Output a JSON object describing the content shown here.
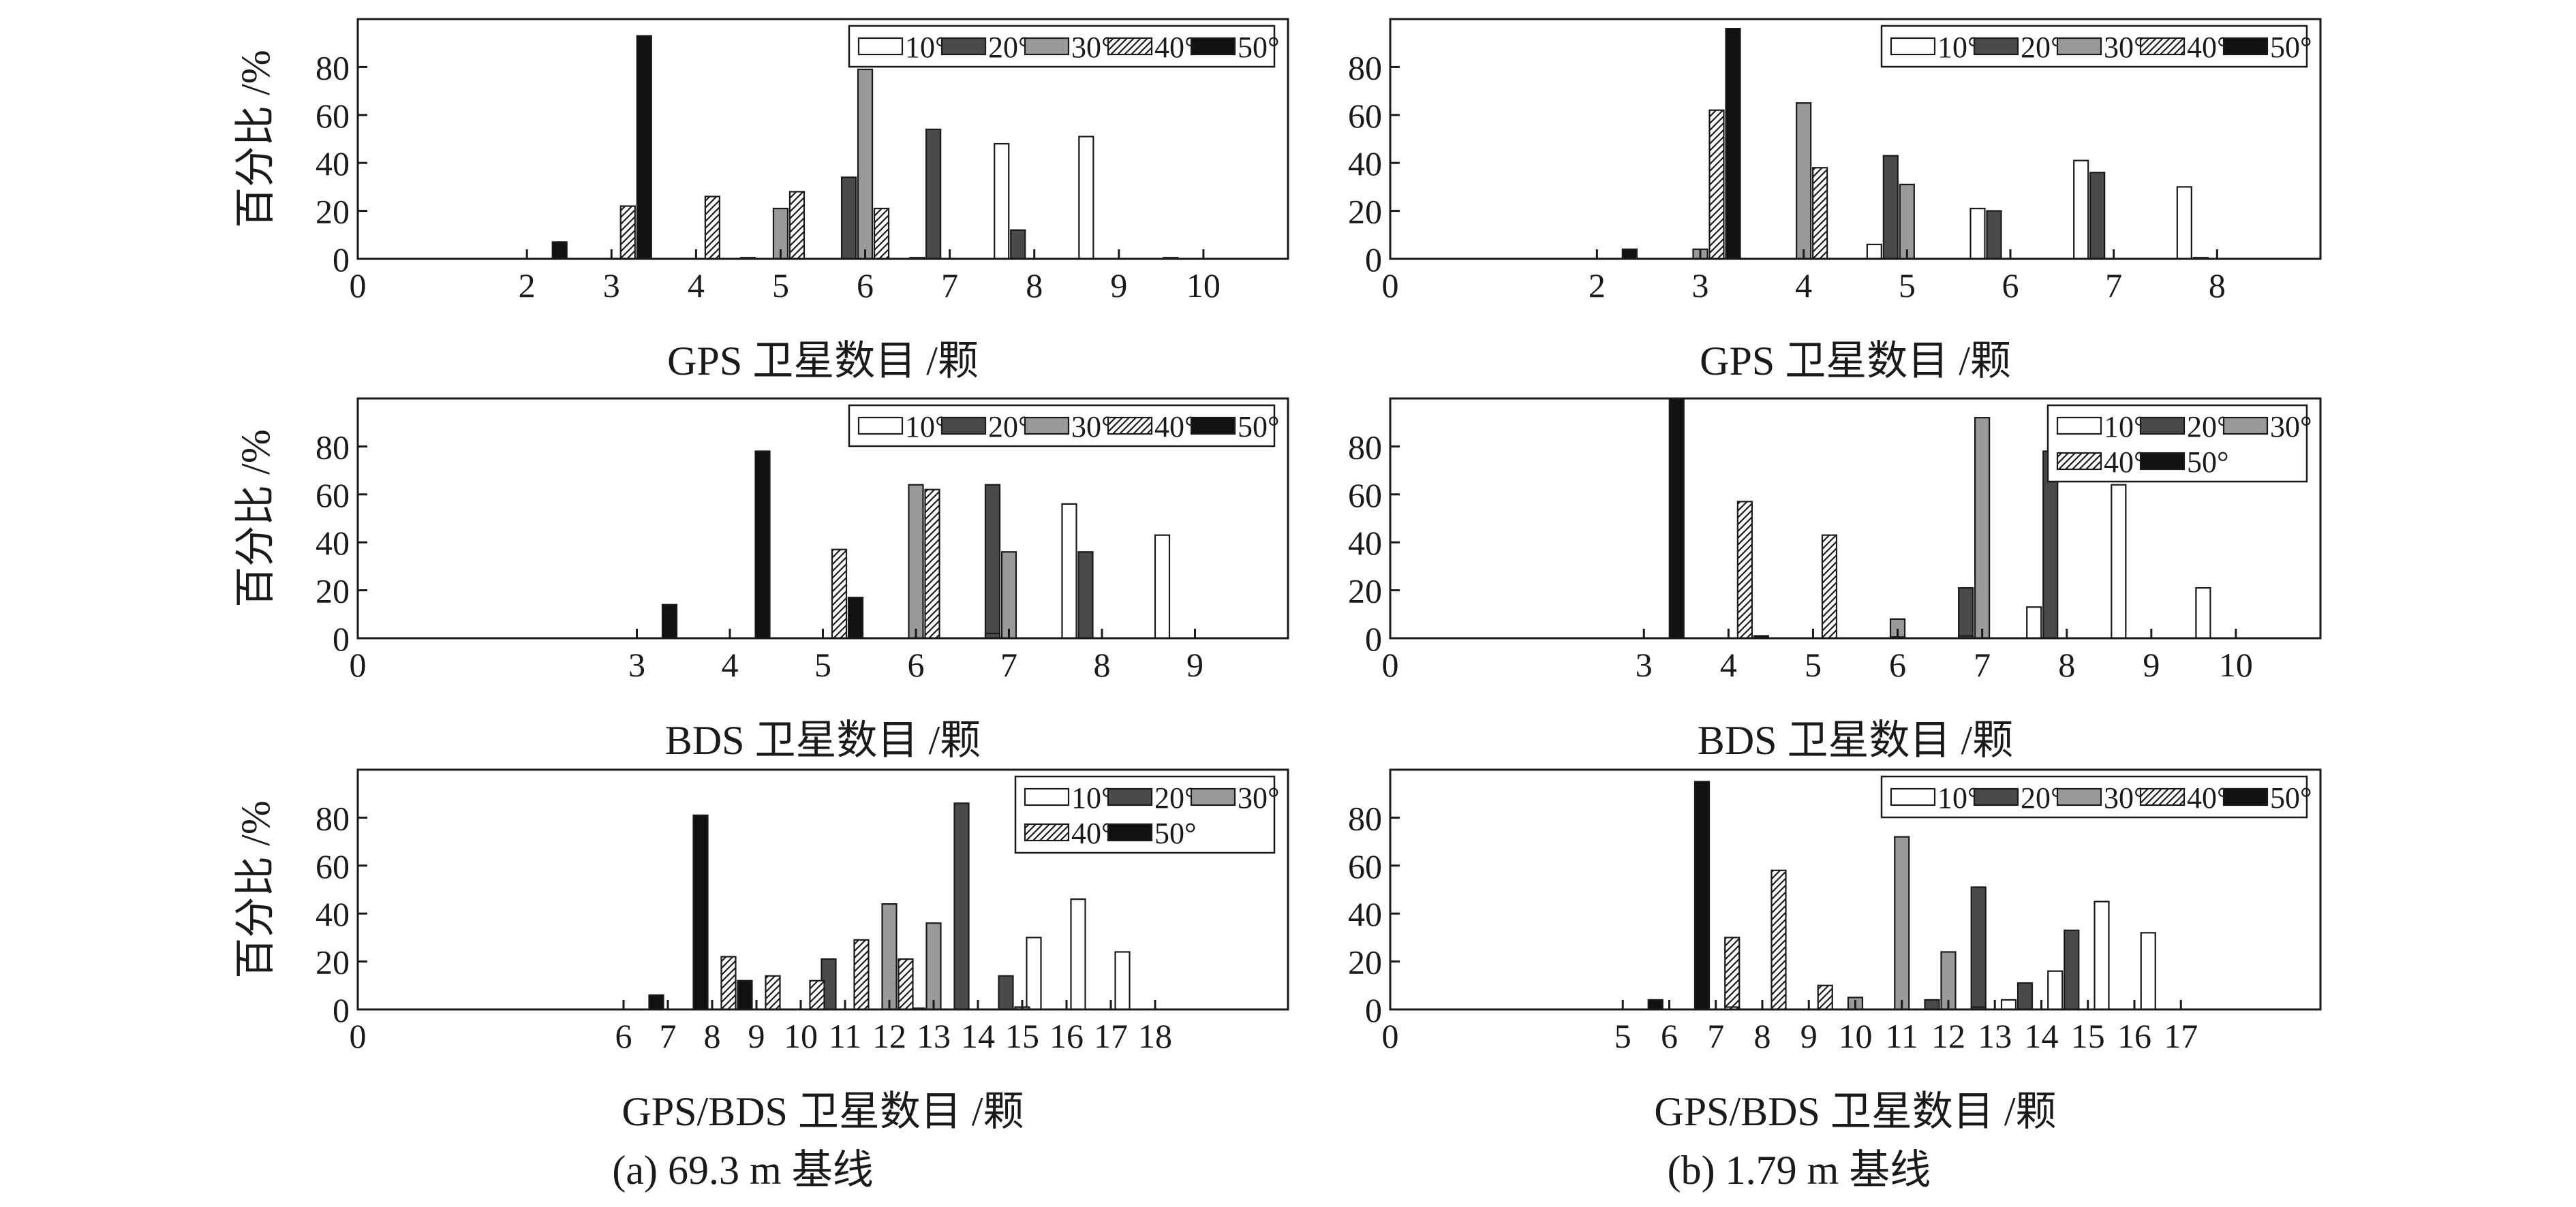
{
  "figure": {
    "legend_series": [
      "10°",
      "20°",
      "30°",
      "40°",
      "50°"
    ],
    "series_styles": [
      {
        "name": "10°",
        "fill": "#ffffff",
        "pattern": "none"
      },
      {
        "name": "20°",
        "fill": "#4a4a4a",
        "pattern": "none"
      },
      {
        "name": "30°",
        "fill": "#9a9a9a",
        "pattern": "none"
      },
      {
        "name": "40°",
        "fill": "#ffffff",
        "pattern": "hatch"
      },
      {
        "name": "50°",
        "fill": "#111111",
        "pattern": "none"
      }
    ],
    "colors": {
      "axis": "#1a1a1a",
      "outline": "#1a1a1a"
    }
  },
  "chart_data": [
    {
      "id": "a-gps",
      "type": "bar",
      "ylabel": "百分比 /%",
      "xlabel": "GPS 卫星数目 /颗",
      "ylim": [
        0,
        100
      ],
      "yticks": [
        0,
        20,
        40,
        60,
        80
      ],
      "xlim": [
        0,
        11
      ],
      "xticks": [
        0,
        2,
        3,
        4,
        5,
        6,
        7,
        8,
        9,
        10
      ],
      "legend_position": "top-right",
      "legend_layout": "one-row",
      "series": [
        {
          "name": "10°",
          "points": [
            [
              5,
              0.5
            ],
            [
              7,
              0.5
            ],
            [
              8,
              48
            ],
            [
              9,
              51
            ],
            [
              10,
              0.5
            ]
          ]
        },
        {
          "name": "20°",
          "points": [
            [
              6,
              34
            ],
            [
              7,
              54
            ],
            [
              8,
              12
            ]
          ]
        },
        {
          "name": "30°",
          "points": [
            [
              5,
              21
            ],
            [
              6,
              79
            ]
          ]
        },
        {
          "name": "40°",
          "points": [
            [
              3,
              22
            ],
            [
              4,
              26
            ],
            [
              5,
              28
            ],
            [
              6,
              21
            ]
          ]
        },
        {
          "name": "50°",
          "points": [
            [
              2,
              7
            ],
            [
              3,
              93
            ]
          ]
        }
      ]
    },
    {
      "id": "b-gps",
      "type": "bar",
      "ylabel": "",
      "xlabel": "GPS 卫星数目 /颗",
      "ylim": [
        0,
        100
      ],
      "yticks": [
        0,
        20,
        40,
        60,
        80
      ],
      "xlim": [
        0,
        9
      ],
      "xticks": [
        0,
        2,
        3,
        4,
        5,
        6,
        7,
        8
      ],
      "legend_position": "top-right",
      "legend_layout": "one-row",
      "series": [
        {
          "name": "10°",
          "points": [
            [
              5,
              6
            ],
            [
              6,
              21
            ],
            [
              7,
              41
            ],
            [
              8,
              30
            ]
          ]
        },
        {
          "name": "20°",
          "points": [
            [
              5,
              43
            ],
            [
              6,
              20
            ],
            [
              7,
              36
            ],
            [
              8,
              0.5
            ]
          ]
        },
        {
          "name": "30°",
          "points": [
            [
              3,
              4
            ],
            [
              4,
              65
            ],
            [
              5,
              31
            ]
          ]
        },
        {
          "name": "40°",
          "points": [
            [
              3,
              62
            ],
            [
              4,
              38
            ]
          ]
        },
        {
          "name": "50°",
          "points": [
            [
              2,
              4
            ],
            [
              3,
              96
            ]
          ]
        }
      ]
    },
    {
      "id": "a-bds",
      "type": "bar",
      "ylabel": "百分比 /%",
      "xlabel": "BDS 卫星数目 /颗",
      "ylim": [
        0,
        100
      ],
      "yticks": [
        0,
        20,
        40,
        60,
        80
      ],
      "xlim": [
        0,
        10
      ],
      "xticks": [
        0,
        3,
        4,
        5,
        6,
        7,
        8,
        9
      ],
      "legend_position": "top-right",
      "legend_layout": "one-row",
      "series": [
        {
          "name": "10°",
          "points": [
            [
              8,
              56
            ],
            [
              9,
              43
            ]
          ]
        },
        {
          "name": "20°",
          "points": [
            [
              7,
              64
            ],
            [
              8,
              36
            ],
            [
              7,
              2
            ]
          ]
        },
        {
          "name": "30°",
          "points": [
            [
              6,
              64
            ],
            [
              7,
              36
            ]
          ]
        },
        {
          "name": "40°",
          "points": [
            [
              5,
              37
            ],
            [
              6,
              62
            ]
          ]
        },
        {
          "name": "50°",
          "points": [
            [
              3,
              14
            ],
            [
              4,
              78
            ],
            [
              5,
              17
            ]
          ]
        }
      ]
    },
    {
      "id": "b-bds",
      "type": "bar",
      "ylabel": "",
      "xlabel": "BDS 卫星数目 /颗",
      "ylim": [
        0,
        100
      ],
      "yticks": [
        0,
        20,
        40,
        60,
        80
      ],
      "xlim": [
        0,
        11
      ],
      "xticks": [
        0,
        3,
        4,
        5,
        6,
        7,
        8,
        9,
        10
      ],
      "legend_position": "top-right",
      "legend_layout": "two-rows",
      "series": [
        {
          "name": "10°",
          "points": [
            [
              8,
              13
            ],
            [
              9,
              64
            ],
            [
              10,
              21
            ]
          ]
        },
        {
          "name": "20°",
          "points": [
            [
              7,
              21
            ],
            [
              8,
              78
            ],
            [
              7,
              1
            ]
          ]
        },
        {
          "name": "30°",
          "points": [
            [
              6,
              8
            ],
            [
              7,
              92
            ],
            [
              6,
              0.5
            ]
          ]
        },
        {
          "name": "40°",
          "points": [
            [
              4,
              57
            ],
            [
              5,
              43
            ]
          ]
        },
        {
          "name": "50°",
          "points": [
            [
              3,
              100
            ],
            [
              4,
              1
            ]
          ]
        }
      ]
    },
    {
      "id": "a-gpsbds",
      "type": "bar",
      "ylabel": "百分比 /%",
      "xlabel": "GPS/BDS 卫星数目 /颗",
      "ylim": [
        0,
        100
      ],
      "yticks": [
        0,
        20,
        40,
        60,
        80
      ],
      "xlim": [
        0,
        21
      ],
      "xticks": [
        0,
        6,
        7,
        8,
        9,
        10,
        11,
        12,
        13,
        14,
        15,
        16,
        17,
        18
      ],
      "legend_position": "top-right",
      "legend_layout": "two-rows",
      "series": [
        {
          "name": "10°",
          "points": [
            [
              16,
              30
            ],
            [
              17,
              46
            ],
            [
              18,
              24
            ]
          ]
        },
        {
          "name": "20°",
          "points": [
            [
              11,
              21
            ],
            [
              14,
              86
            ],
            [
              15,
              14
            ],
            [
              13,
              0.5
            ]
          ]
        },
        {
          "name": "30°",
          "points": [
            [
              12,
              44
            ],
            [
              13,
              36
            ],
            [
              15,
              1
            ]
          ]
        },
        {
          "name": "40°",
          "points": [
            [
              8,
              22
            ],
            [
              9,
              14
            ],
            [
              10,
              12
            ],
            [
              11,
              29
            ],
            [
              12,
              21
            ]
          ]
        },
        {
          "name": "50°",
          "points": [
            [
              6,
              6
            ],
            [
              7,
              81
            ],
            [
              8,
              12
            ]
          ]
        }
      ]
    },
    {
      "id": "b-gpsbds",
      "type": "bar",
      "ylabel": "",
      "xlabel": "GPS/BDS 卫星数目 /颗",
      "ylim": [
        0,
        100
      ],
      "yticks": [
        0,
        20,
        40,
        60,
        80
      ],
      "xlim": [
        0,
        20
      ],
      "xticks": [
        0,
        5,
        6,
        7,
        8,
        9,
        10,
        11,
        12,
        13,
        14,
        15,
        16,
        17
      ],
      "legend_position": "top-right",
      "legend_layout": "one-row",
      "series": [
        {
          "name": "10°",
          "points": [
            [
              14,
              4
            ],
            [
              15,
              16
            ],
            [
              16,
              45
            ],
            [
              17,
              32
            ]
          ]
        },
        {
          "name": "20°",
          "points": [
            [
              12,
              4
            ],
            [
              13,
              51
            ],
            [
              14,
              11
            ],
            [
              15,
              33
            ],
            [
              13,
              1
            ]
          ]
        },
        {
          "name": "30°",
          "points": [
            [
              10,
              5
            ],
            [
              11,
              72
            ],
            [
              12,
              24
            ]
          ]
        },
        {
          "name": "40°",
          "points": [
            [
              7,
              30
            ],
            [
              8,
              58
            ],
            [
              9,
              10
            ],
            [
              7,
              1
            ]
          ]
        },
        {
          "name": "50°",
          "points": [
            [
              5,
              4
            ],
            [
              6,
              95
            ]
          ]
        }
      ]
    }
  ],
  "captions": {
    "left": "(a) 69.3 m 基线",
    "right": "(b) 1.79 m 基线"
  }
}
